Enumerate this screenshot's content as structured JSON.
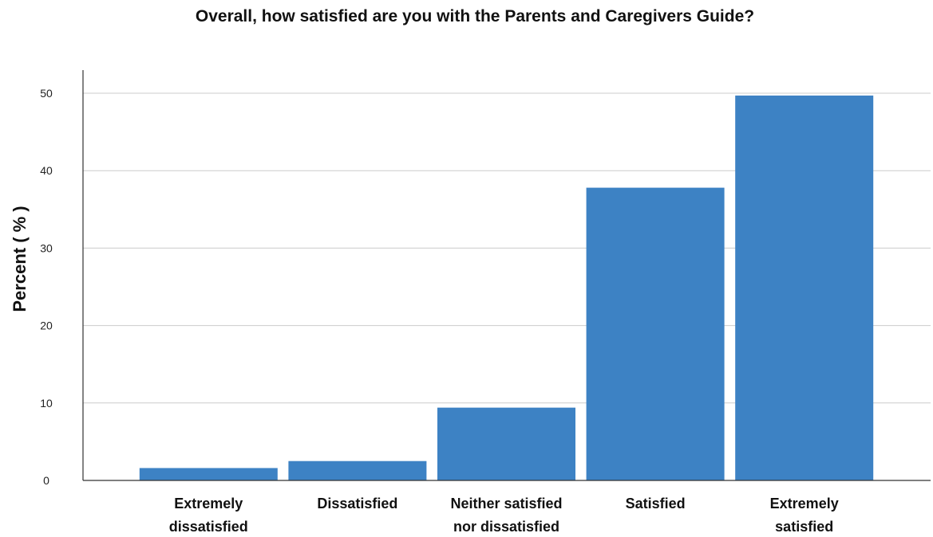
{
  "chart_data": {
    "type": "bar",
    "title": "Overall, how satisfied are you with the Parents and Caregivers Guide?",
    "ylabel": "Percent ( % )",
    "xlabel": "",
    "categories": [
      [
        "Extremely",
        "dissatisfied"
      ],
      [
        "Dissatisfied"
      ],
      [
        "Neither satisfied",
        "nor dissatisfied"
      ],
      [
        "Satisfied"
      ],
      [
        "Extremely",
        "satisfied"
      ]
    ],
    "values": [
      1.6,
      2.5,
      9.4,
      37.8,
      49.7
    ],
    "ylim": [
      0,
      50
    ],
    "yticks": [
      0,
      10,
      20,
      30,
      40,
      50
    ],
    "grid": true,
    "bar_color": "#3d82c4",
    "legend": "none"
  }
}
